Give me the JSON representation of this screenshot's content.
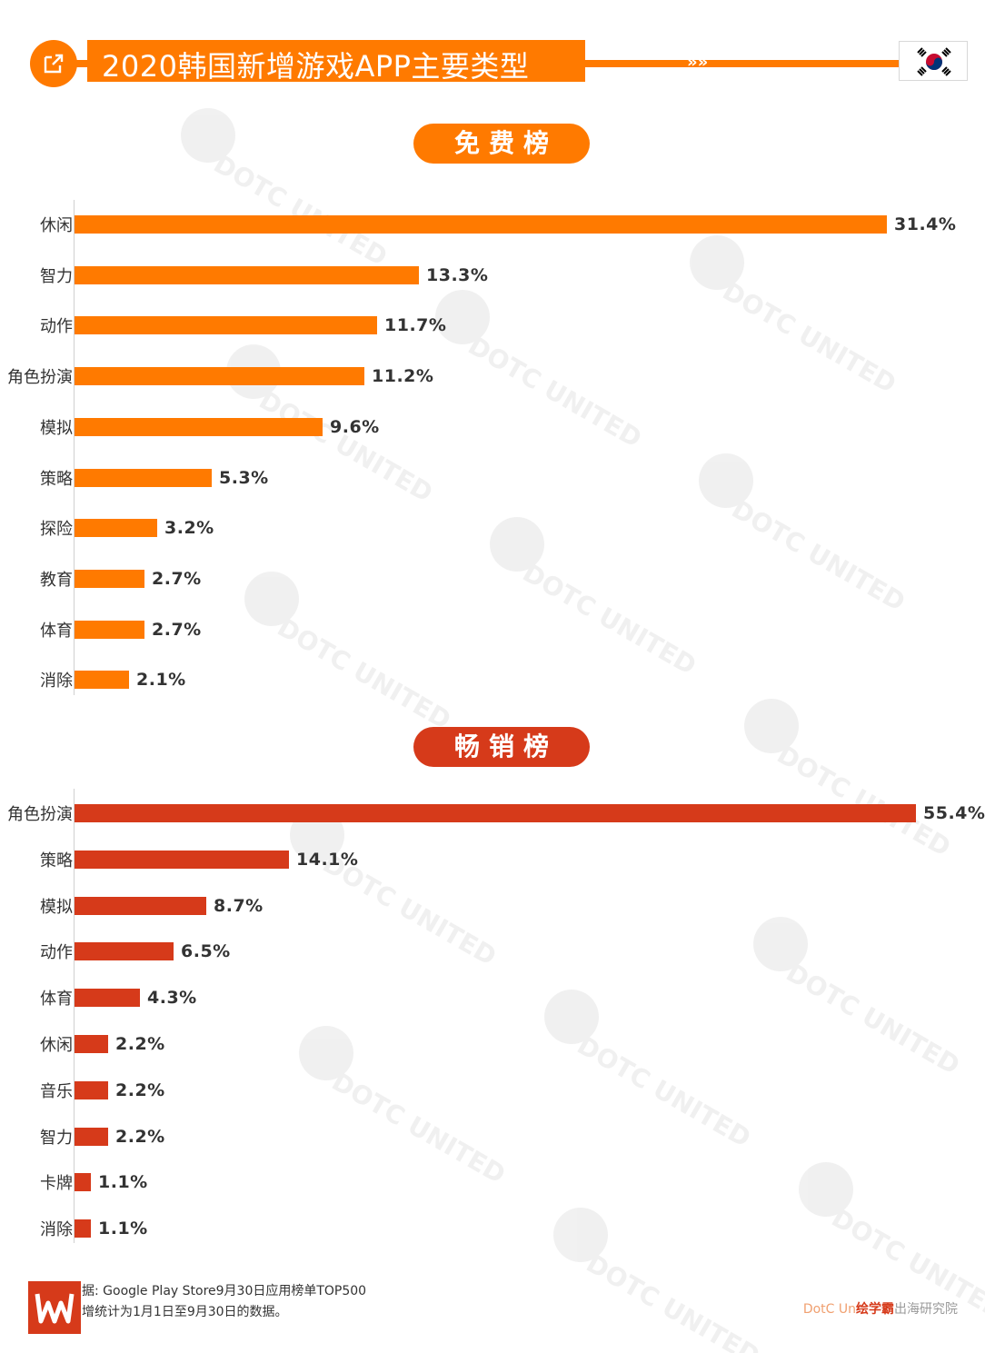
{
  "header": {
    "title": "2020韩国新增游戏APP主要类型",
    "arrows": "»»",
    "flag": "korea-flag",
    "accent_color": "#ff7a00"
  },
  "watermark": {
    "text": "DOTC UNITED"
  },
  "chart_data": [
    {
      "type": "bar",
      "orientation": "horizontal",
      "title": "免费榜",
      "color": "#ff7a00",
      "categories": [
        "休闲",
        "智力",
        "动作",
        "角色扮演",
        "模拟",
        "策略",
        "探险",
        "教育",
        "体育",
        "消除"
      ],
      "values": [
        31.4,
        13.3,
        11.7,
        11.2,
        9.6,
        5.3,
        3.2,
        2.7,
        2.7,
        2.1
      ],
      "value_labels": [
        "31.4%",
        "13.3%",
        "11.7%",
        "11.2%",
        "9.6%",
        "5.3%",
        "3.2%",
        "2.7%",
        "2.7%",
        "2.1%"
      ],
      "xlim": [
        0,
        31.4
      ]
    },
    {
      "type": "bar",
      "orientation": "horizontal",
      "title": "畅销榜",
      "color": "#d63a1a",
      "categories": [
        "角色扮演",
        "策略",
        "模拟",
        "动作",
        "体育",
        "休闲",
        "音乐",
        "智力",
        "卡牌",
        "消除"
      ],
      "values": [
        55.4,
        14.1,
        8.7,
        6.5,
        4.3,
        2.2,
        2.2,
        2.2,
        1.1,
        1.1
      ],
      "value_labels": [
        "55.4%",
        "14.1%",
        "8.7%",
        "6.5%",
        "4.3%",
        "2.2%",
        "2.2%",
        "2.2%",
        "1.1%",
        "1.1%"
      ],
      "xlim": [
        0,
        55.4
      ]
    }
  ],
  "footer": {
    "source_line1": "据: Google Play Store9月30日应用榜单TOP500",
    "source_line2": "增统计为1月1日至9月30日的数据。",
    "brand_part1": "DotC Un",
    "brand_part2": "绘学霸",
    "brand_part3": "出海研究院"
  }
}
